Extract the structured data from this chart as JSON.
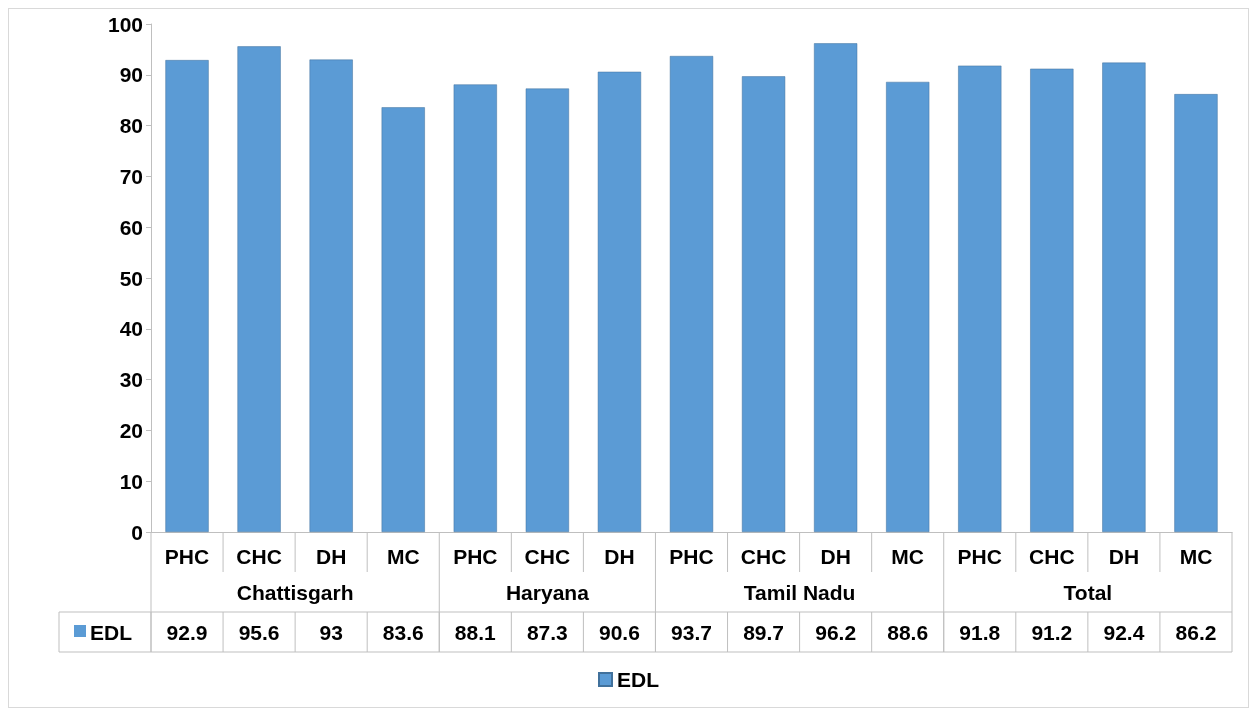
{
  "chart_data": {
    "type": "bar",
    "categories": [
      "PHC",
      "CHC",
      "DH",
      "MC",
      "PHC",
      "CHC",
      "DH",
      "PHC",
      "CHC",
      "DH",
      "MC",
      "PHC",
      "CHC",
      "DH",
      "MC"
    ],
    "annotations": [
      "Chattisgarh",
      "Haryana",
      "Tamil Nadu",
      "Total"
    ],
    "series": [
      {
        "name": "EDL",
        "color": "#5b9bd5",
        "values": [
          92.9,
          95.6,
          93,
          83.6,
          88.1,
          87.3,
          90.6,
          93.7,
          89.7,
          96.2,
          88.6,
          91.8,
          91.2,
          92.4,
          86.2
        ]
      }
    ],
    "ylim": [
      0,
      100
    ],
    "yticks": [
      0,
      10,
      20,
      30,
      40,
      50,
      60,
      70,
      80,
      90,
      100
    ],
    "grid": false,
    "legend": "bottom",
    "data_labels": true
  }
}
